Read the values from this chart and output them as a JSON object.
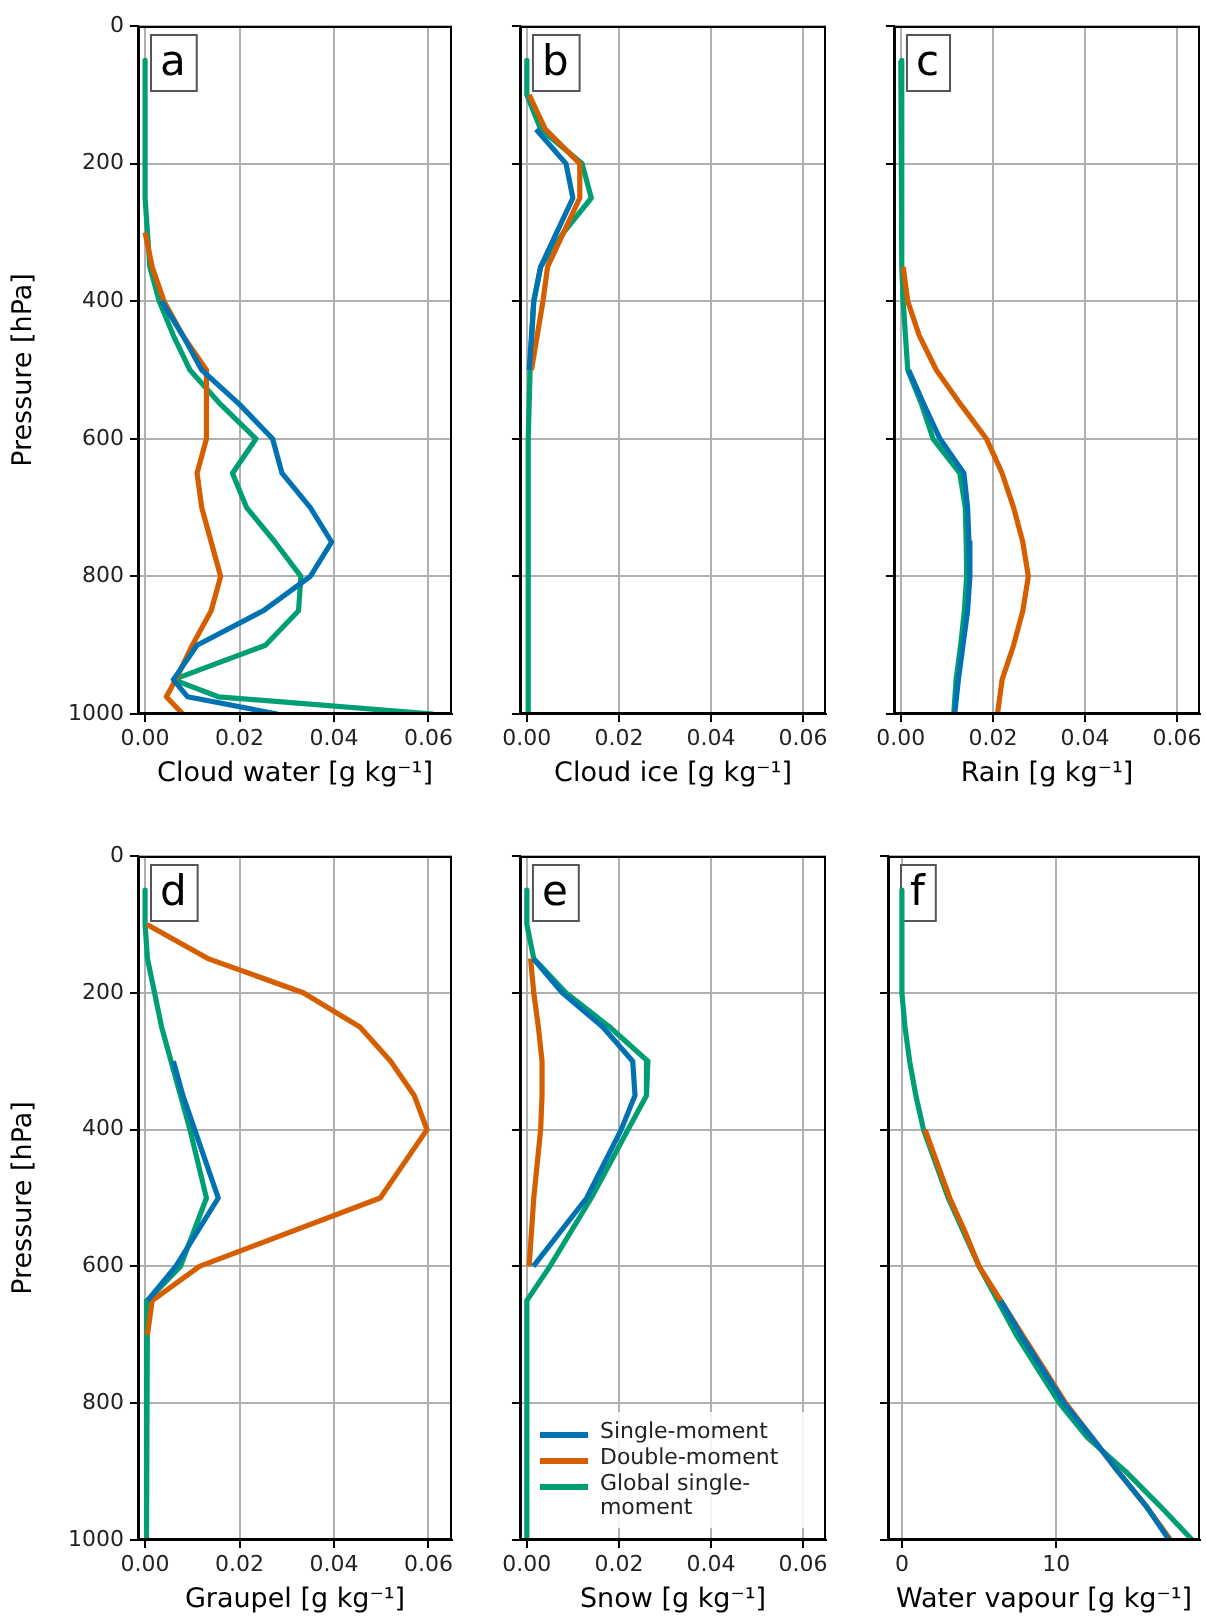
{
  "chart_data": [
    {
      "type": "line",
      "xlabel": "Cloud water [g kg⁻¹]",
      "ylabel": "Pressure [hPa]",
      "annotations": [
        "a"
      ],
      "xlim": [
        -0.0015,
        0.065
      ],
      "xticks": [
        {
          "value": 0,
          "label": "0.00"
        },
        {
          "value": 0.02,
          "label": "0.02"
        },
        {
          "value": 0.04,
          "label": "0.04"
        },
        {
          "value": 0.06,
          "label": "0.06"
        }
      ],
      "ylim": [
        1000,
        0
      ],
      "yticks": [
        0,
        200,
        400,
        600,
        800,
        1000
      ],
      "grid": true,
      "legend": false,
      "marker": "none",
      "series": [
        {
          "color": "#0072b2",
          "x": [
            0.0035,
            0.008,
            0.012,
            0.02,
            0.027,
            0.029,
            0.035,
            0.0395,
            0.035,
            0.025,
            0.011,
            0.006,
            0.009,
            0.028
          ],
          "values": [
            400,
            450,
            500,
            550,
            600,
            650,
            700,
            750,
            800,
            850,
            900,
            950,
            975,
            1000
          ]
        },
        {
          "color": "#d55e00",
          "x": [
            0,
            0.0015,
            0.004,
            0.008,
            0.013,
            0.013,
            0.011,
            0.012,
            0.014,
            0.016,
            0.014,
            0.01,
            0.0065,
            0.0045,
            0.008
          ],
          "values": [
            300,
            350,
            400,
            450,
            500,
            600,
            650,
            700,
            750,
            800,
            850,
            900,
            950,
            975,
            1000
          ]
        },
        {
          "color": "#009e73",
          "x": [
            0,
            0,
            0.0005,
            0.001,
            0.003,
            0.006,
            0.0095,
            0.016,
            0.0235,
            0.0185,
            0.0215,
            0.0275,
            0.033,
            0.0325,
            0.0255,
            0.006,
            0.0155,
            0.061
          ],
          "values": [
            50,
            250,
            300,
            350,
            400,
            450,
            500,
            550,
            600,
            650,
            700,
            750,
            800,
            850,
            900,
            950,
            975,
            1000
          ]
        }
      ]
    },
    {
      "type": "line",
      "xlabel": "Cloud ice [g kg⁻¹]",
      "annotations": [
        "b"
      ],
      "xlim": [
        -0.0015,
        0.065
      ],
      "xticks": [
        {
          "value": 0,
          "label": "0.00"
        },
        {
          "value": 0.02,
          "label": "0.02"
        },
        {
          "value": 0.04,
          "label": "0.04"
        },
        {
          "value": 0.06,
          "label": "0.06"
        }
      ],
      "ylim": [
        1000,
        0
      ],
      "yticks": [
        0,
        200,
        400,
        600,
        800,
        1000
      ],
      "tick_labels": "x",
      "grid": true,
      "legend": false,
      "marker": "none",
      "series": [
        {
          "color": "#0072b2",
          "x": [
            0.002,
            0.0085,
            0.01,
            0.0065,
            0.003,
            0.0015,
            0.0005
          ],
          "values": [
            150,
            200,
            250,
            300,
            350,
            400,
            500
          ]
        },
        {
          "color": "#d55e00",
          "x": [
            0.0005,
            0.004,
            0.0115,
            0.0115,
            0.008,
            0.0045,
            0.0035,
            0.001
          ],
          "values": [
            100,
            150,
            200,
            250,
            300,
            350,
            400,
            500
          ]
        },
        {
          "color": "#009e73",
          "x": [
            0,
            0,
            0.003,
            0.012,
            0.014,
            0.008,
            0.003,
            0.0015,
            0.0007,
            0.0003,
            0.0003
          ],
          "values": [
            50,
            100,
            150,
            200,
            250,
            300,
            350,
            400,
            500,
            600,
            1000
          ]
        }
      ]
    },
    {
      "type": "line",
      "xlabel": "Rain [g kg⁻¹]",
      "annotations": [
        "c"
      ],
      "xlim": [
        -0.0015,
        0.065
      ],
      "xticks": [
        {
          "value": 0,
          "label": "0.00"
        },
        {
          "value": 0.02,
          "label": "0.02"
        },
        {
          "value": 0.04,
          "label": "0.04"
        },
        {
          "value": 0.06,
          "label": "0.06"
        }
      ],
      "ylim": [
        1000,
        0
      ],
      "yticks": [
        0,
        200,
        400,
        600,
        800,
        1000
      ],
      "tick_labels": "x",
      "grid": true,
      "legend": false,
      "marker": "none",
      "series": [
        {
          "color": "#0072b2",
          "x": [
            0.0017,
            0.005,
            0.0085,
            0.0137,
            0.0145,
            0.0148,
            0.015,
            0.0145,
            0.0135,
            0.0125,
            0.0117
          ],
          "values": [
            500,
            550,
            600,
            650,
            700,
            750,
            800,
            850,
            900,
            950,
            1000
          ]
        },
        {
          "color": "#d55e00",
          "x": [
            0.0005,
            0.0015,
            0.004,
            0.0077,
            0.013,
            0.0186,
            0.022,
            0.0245,
            0.0265,
            0.0277,
            0.0265,
            0.0245,
            0.022,
            0.021
          ],
          "values": [
            350,
            400,
            450,
            500,
            550,
            600,
            650,
            700,
            750,
            800,
            850,
            900,
            950,
            1000
          ]
        },
        {
          "color": "#009e73",
          "x": [
            0,
            0.0002,
            0.0005,
            0.001,
            0.0015,
            0.0045,
            0.007,
            0.0128,
            0.014,
            0.0142,
            0.0143,
            0.0138,
            0.013,
            0.012,
            0.0115
          ],
          "values": [
            50,
            350,
            400,
            450,
            500,
            550,
            600,
            650,
            700,
            750,
            800,
            850,
            900,
            950,
            1000
          ]
        }
      ]
    },
    {
      "type": "line",
      "xlabel": "Graupel [g kg⁻¹]",
      "ylabel": "Pressure [hPa]",
      "annotations": [
        "d"
      ],
      "xlim": [
        -0.0015,
        0.065
      ],
      "xticks": [
        {
          "value": 0,
          "label": "0.00"
        },
        {
          "value": 0.02,
          "label": "0.02"
        },
        {
          "value": 0.04,
          "label": "0.04"
        },
        {
          "value": 0.06,
          "label": "0.06"
        }
      ],
      "ylim": [
        1000,
        0
      ],
      "yticks": [
        0,
        200,
        400,
        600,
        800,
        1000
      ],
      "grid": true,
      "legend": false,
      "marker": "none",
      "series": [
        {
          "color": "#0072b2",
          "x": [
            0.006,
            0.008,
            0.0105,
            0.0155,
            0.0065,
            0.0005
          ],
          "values": [
            300,
            350,
            400,
            500,
            600,
            650
          ]
        },
        {
          "color": "#d55e00",
          "x": [
            0.0004,
            0.0133,
            0.0335,
            0.0455,
            0.052,
            0.057,
            0.0597,
            0.0498,
            0.0115,
            0.0015,
            0.0005
          ],
          "values": [
            100,
            150,
            200,
            250,
            300,
            350,
            400,
            500,
            600,
            650,
            700
          ]
        },
        {
          "color": "#009e73",
          "x": [
            0,
            0,
            0.0005,
            0.002,
            0.0035,
            0.0055,
            0.0075,
            0.0095,
            0.013,
            0.0075,
            0.0005,
            0.0003
          ],
          "values": [
            50,
            100,
            150,
            200,
            250,
            300,
            350,
            400,
            500,
            600,
            650,
            1000
          ]
        }
      ]
    },
    {
      "type": "line",
      "xlabel": "Snow [g kg⁻¹]",
      "annotations": [
        "e"
      ],
      "xlim": [
        -0.0015,
        0.065
      ],
      "xticks": [
        {
          "value": 0,
          "label": "0.00"
        },
        {
          "value": 0.02,
          "label": "0.02"
        },
        {
          "value": 0.04,
          "label": "0.04"
        },
        {
          "value": 0.06,
          "label": "0.06"
        }
      ],
      "ylim": [
        1000,
        0
      ],
      "yticks": [
        0,
        200,
        400,
        600,
        800,
        1000
      ],
      "tick_labels": "x",
      "grid": true,
      "legend": "bottom left",
      "marker": "none",
      "series": [
        {
          "name": "Single-moment",
          "color": "#0072b2",
          "x": [
            0.0014,
            0.0077,
            0.0165,
            0.023,
            0.0235,
            0.0205,
            0.013,
            0.0014
          ],
          "values": [
            150,
            200,
            250,
            300,
            350,
            400,
            500,
            600
          ]
        },
        {
          "name": "Double-moment",
          "color": "#d55e00",
          "x": [
            0.0008,
            0.0015,
            0.0025,
            0.0033,
            0.0033,
            0.003,
            0.0015,
            0.0005
          ],
          "values": [
            150,
            200,
            250,
            300,
            350,
            400,
            500,
            600
          ]
        },
        {
          "name": "Global single-moment",
          "color": "#009e73",
          "x": [
            0,
            0,
            0.0015,
            0.0085,
            0.018,
            0.0263,
            0.026,
            0.022,
            0.014,
            0.005,
            0,
            0
          ],
          "values": [
            50,
            100,
            150,
            200,
            250,
            300,
            350,
            400,
            500,
            600,
            650,
            1000
          ]
        }
      ]
    },
    {
      "type": "line",
      "xlabel": "Water vapour [g kg⁻¹]",
      "annotations": [
        "f"
      ],
      "xlim": [
        -0.9,
        19.3
      ],
      "xticks": [
        0,
        10
      ],
      "ylim": [
        1000,
        0
      ],
      "yticks": [
        0,
        200,
        400,
        600,
        800,
        1000
      ],
      "tick_labels": "x",
      "grid": true,
      "legend": false,
      "marker": "none",
      "series": [
        {
          "color": "#0072b2",
          "x": [
            6.4,
            7.7,
            9.1,
            10.5,
            12.3,
            14.0,
            15.8,
            17.3
          ],
          "values": [
            650,
            700,
            750,
            800,
            850,
            900,
            950,
            1000
          ]
        },
        {
          "color": "#d55e00",
          "x": [
            1.5,
            2.3,
            3.1,
            4.1,
            5.0,
            6.4,
            7.8,
            9.2,
            10.6,
            12.3,
            14.0,
            15.8,
            17.4
          ],
          "values": [
            400,
            450,
            500,
            550,
            600,
            650,
            700,
            750,
            800,
            850,
            900,
            950,
            1000
          ]
        },
        {
          "color": "#009e73",
          "x": [
            0,
            0,
            0.2,
            0.5,
            0.9,
            1.4,
            2.2,
            3.0,
            4.0,
            5.0,
            6.2,
            7.4,
            8.8,
            10.2,
            12.0,
            14.5,
            16.7,
            18.8
          ],
          "values": [
            50,
            200,
            250,
            300,
            350,
            400,
            450,
            500,
            550,
            600,
            650,
            700,
            750,
            800,
            850,
            900,
            950,
            1000
          ]
        }
      ]
    }
  ]
}
